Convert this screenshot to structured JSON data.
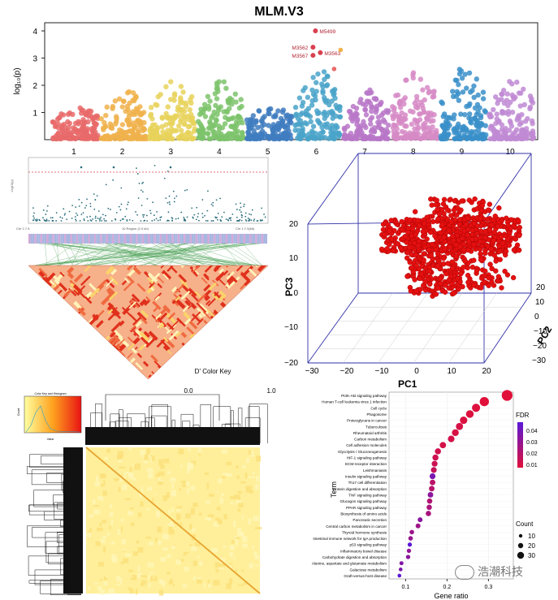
{
  "figure_title": "MLM.V3",
  "colors": {
    "manhattan": [
      "#e96a6a",
      "#f0b24b",
      "#e8d25a",
      "#7cc36b",
      "#3f7cc0",
      "#4aa3c9",
      "#b877c8",
      "#d689c6",
      "#3a8fc9",
      "#c08ad4"
    ],
    "threshold": "#d94050",
    "pca_point": "#e51010",
    "pca_box": "#3030a8",
    "dot_high_fdr": "#5a18d6",
    "dot_low_fdr": "#e0103a"
  },
  "watermark": "浩潮科技",
  "chart_data": [
    {
      "id": "manhattan",
      "type": "scatter",
      "title": "MLM.V3",
      "ylabel": "log₁₀(p)",
      "xlabel": "",
      "chromosomes": [
        "1",
        "2",
        "3",
        "4",
        "5",
        "6",
        "7",
        "8",
        "9",
        "10"
      ],
      "yticks": [
        "1",
        "2",
        "3",
        "4"
      ],
      "ylim": [
        0,
        4.3
      ],
      "peak_max_per_chromosome": [
        1.3,
        1.9,
        2.2,
        2.2,
        1.3,
        2.6,
        1.9,
        2.5,
        2.7,
        2.2
      ],
      "annotations": [
        {
          "label": "M5499",
          "chromosome": "6",
          "value": 4.0
        },
        {
          "label": "M3562",
          "chromosome": "6",
          "value": 3.4
        },
        {
          "label": "M3563",
          "chromosome": "6",
          "value": 3.2
        },
        {
          "label": "M3567",
          "chromosome": "6",
          "value": 3.1
        }
      ]
    },
    {
      "id": "ld_regional",
      "type": "scatter",
      "description_labels": {
        "left": "Chr 1:7.5",
        "mid": "10 Region (2.0 kb)",
        "right": "Chr 1:7.5(kb)",
        "ylabel": "-log10(p)"
      },
      "color_key_title": "D' Color Key",
      "color_key_ticks": [
        "0.0",
        "1.0"
      ]
    },
    {
      "id": "pca3d",
      "type": "scatter",
      "x_label": "PC1",
      "y_label": "PC2",
      "z_label": "PC3",
      "x_ticks": [
        "−30",
        "−20",
        "−10",
        "0",
        "10",
        "20"
      ],
      "y_ticks": [
        "−30",
        "−20",
        "−10",
        "0",
        "10",
        "20"
      ],
      "z_ticks": [
        "−20",
        "−10",
        "0",
        "10",
        "20"
      ]
    },
    {
      "id": "kinship_heatmap",
      "type": "heatmap",
      "color_key_title": "Color Key and Histogram",
      "color_key_xlabel": "Value",
      "color_key_ylabel": "Count"
    },
    {
      "id": "kegg_dotplot",
      "type": "scatter",
      "xlabel": "Gene ratio",
      "ylabel": "Term",
      "xticks": [
        "0.1",
        "0.2",
        "0.3"
      ],
      "xlim": [
        0.06,
        0.36
      ],
      "legend_fdr_title": "FDR",
      "legend_fdr_ticks": [
        "0.04",
        "0.03",
        "0.02",
        "0.01"
      ],
      "legend_count_title": "Count",
      "legend_count_ticks": [
        10,
        20,
        30
      ],
      "terms": [
        {
          "term": "PI3K-Akt signaling pathway",
          "ratio": 0.345,
          "count": 34,
          "fdr": 0.002
        },
        {
          "term": "Human T-cell leukemia virus 1 infection",
          "ratio": 0.29,
          "count": 28,
          "fdr": 0.003
        },
        {
          "term": "Cell cycle",
          "ratio": 0.27,
          "count": 24,
          "fdr": 0.004
        },
        {
          "term": "Phagosome",
          "ratio": 0.255,
          "count": 22,
          "fdr": 0.004
        },
        {
          "term": "Proteoglycans in cancer",
          "ratio": 0.24,
          "count": 21,
          "fdr": 0.005
        },
        {
          "term": "Tuberculosis",
          "ratio": 0.23,
          "count": 20,
          "fdr": 0.006
        },
        {
          "term": "Rheumatoid arthritis",
          "ratio": 0.22,
          "count": 19,
          "fdr": 0.006
        },
        {
          "term": "Carbon metabolism",
          "ratio": 0.21,
          "count": 18,
          "fdr": 0.007
        },
        {
          "term": "Cell adhesion molecules",
          "ratio": 0.19,
          "count": 17,
          "fdr": 0.007
        },
        {
          "term": "Glycolysis / Gluconeogenesis",
          "ratio": 0.178,
          "count": 16,
          "fdr": 0.008
        },
        {
          "term": "HIF-1 signaling pathway",
          "ratio": 0.172,
          "count": 16,
          "fdr": 0.009
        },
        {
          "term": "ECM-receptor interaction",
          "ratio": 0.17,
          "count": 15,
          "fdr": 0.01
        },
        {
          "term": "Leishmaniasis",
          "ratio": 0.168,
          "count": 15,
          "fdr": 0.012
        },
        {
          "term": "Insulin signaling pathway",
          "ratio": 0.165,
          "count": 15,
          "fdr": 0.035
        },
        {
          "term": "Th17 cell differentiation",
          "ratio": 0.165,
          "count": 14,
          "fdr": 0.015
        },
        {
          "term": "Protein digestion and absorption",
          "ratio": 0.163,
          "count": 14,
          "fdr": 0.016
        },
        {
          "term": "TNF signaling pathway",
          "ratio": 0.16,
          "count": 14,
          "fdr": 0.03
        },
        {
          "term": "Glucagon signaling pathway",
          "ratio": 0.158,
          "count": 13,
          "fdr": 0.018
        },
        {
          "term": "PPAR signaling pathway",
          "ratio": 0.157,
          "count": 13,
          "fdr": 0.02
        },
        {
          "term": "Biosynthesis of amino acids",
          "ratio": 0.155,
          "count": 13,
          "fdr": 0.021
        },
        {
          "term": "Pancreatic secretion",
          "ratio": 0.135,
          "count": 11,
          "fdr": 0.03
        },
        {
          "term": "Central carbon metabolism in cancer",
          "ratio": 0.13,
          "count": 11,
          "fdr": 0.024
        },
        {
          "term": "Thyroid hormone synthesis",
          "ratio": 0.115,
          "count": 10,
          "fdr": 0.025
        },
        {
          "term": "Intestinal immune network for IgA production",
          "ratio": 0.112,
          "count": 10,
          "fdr": 0.026
        },
        {
          "term": "p53 signaling pathway",
          "ratio": 0.11,
          "count": 9,
          "fdr": 0.045
        },
        {
          "term": "Inflammatory bowel disease",
          "ratio": 0.108,
          "count": 9,
          "fdr": 0.028
        },
        {
          "term": "Carbohydrate digestion and absorption",
          "ratio": 0.106,
          "count": 9,
          "fdr": 0.03
        },
        {
          "term": "Alanine, aspartate and glutamate metabolism",
          "ratio": 0.09,
          "count": 8,
          "fdr": 0.032
        },
        {
          "term": "Galactose metabolism",
          "ratio": 0.088,
          "count": 7,
          "fdr": 0.034
        },
        {
          "term": "Graft-versus-host disease",
          "ratio": 0.085,
          "count": 7,
          "fdr": 0.045
        }
      ]
    }
  ]
}
